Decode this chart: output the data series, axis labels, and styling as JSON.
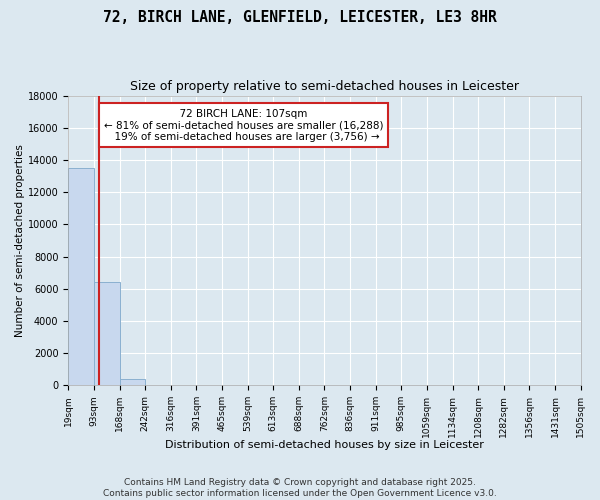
{
  "title": "72, BIRCH LANE, GLENFIELD, LEICESTER, LE3 8HR",
  "subtitle": "Size of property relative to semi-detached houses in Leicester",
  "xlabel": "Distribution of semi-detached houses by size in Leicester",
  "ylabel": "Number of semi-detached properties",
  "bin_edges": [
    19,
    93,
    168,
    242,
    316,
    391,
    465,
    539,
    613,
    688,
    762,
    836,
    911,
    985,
    1059,
    1134,
    1208,
    1282,
    1356,
    1431,
    1505
  ],
  "bar_heights": [
    13500,
    6400,
    400,
    50,
    0,
    0,
    0,
    0,
    0,
    0,
    0,
    0,
    0,
    0,
    0,
    0,
    0,
    0,
    0,
    0
  ],
  "bar_color": "#c8d8ee",
  "bar_edgecolor": "#8ab0d0",
  "property_sqm": 107,
  "property_label": "72 BIRCH LANE: 107sqm",
  "pct_smaller": 81,
  "count_smaller": 16288,
  "pct_larger": 19,
  "count_larger": 3756,
  "vline_color": "#cc2222",
  "annotation_box_edgecolor": "#cc2222",
  "annotation_box_facecolor": "#ffffff",
  "ylim": [
    0,
    18000
  ],
  "xlim": [
    19,
    1505
  ],
  "background_color": "#dce8f0",
  "plot_background": "#dce8f0",
  "footer_line1": "Contains HM Land Registry data © Crown copyright and database right 2025.",
  "footer_line2": "Contains public sector information licensed under the Open Government Licence v3.0.",
  "title_fontsize": 10.5,
  "subtitle_fontsize": 9,
  "annotation_fontsize": 7.5,
  "tick_label_fontsize": 6.5,
  "ylabel_fontsize": 7.5,
  "xlabel_fontsize": 8,
  "footer_fontsize": 6.5
}
